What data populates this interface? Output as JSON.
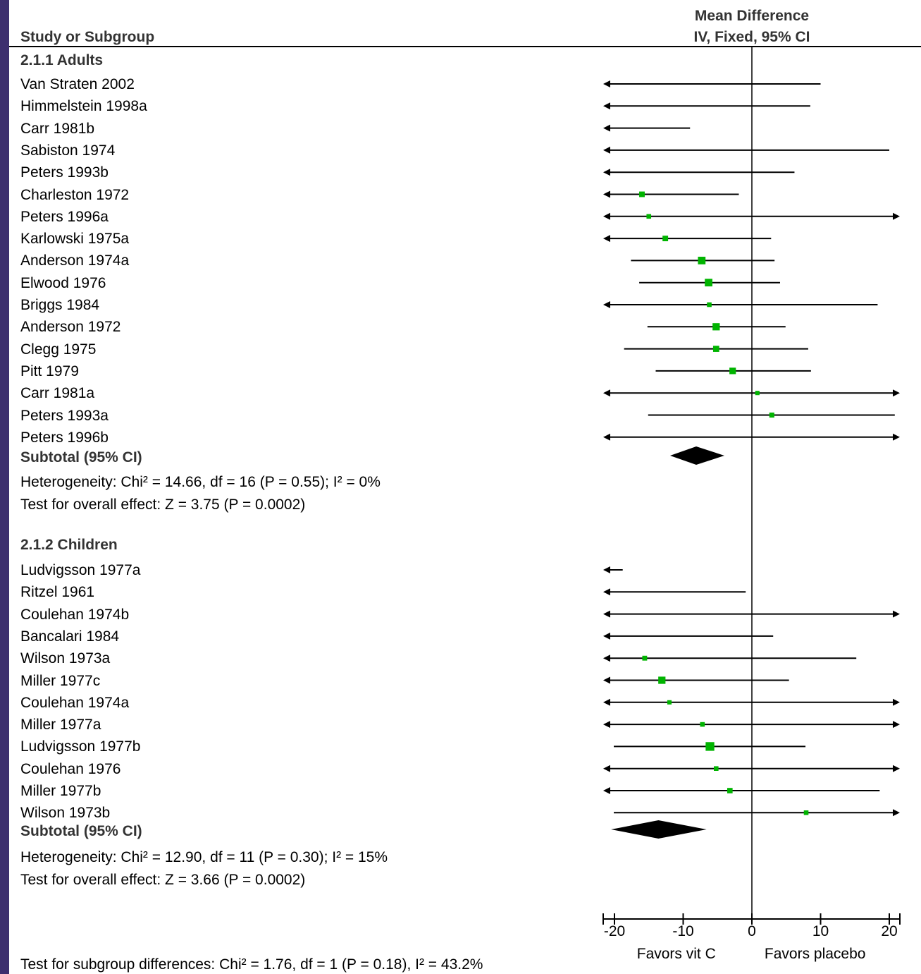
{
  "header": {
    "study_col": "Study or Subgroup",
    "md_line1": "Mean Difference",
    "md_line2": "IV, Fixed, 95% CI"
  },
  "chart_data": {
    "type": "forest",
    "xlim": [
      -21,
      21
    ],
    "xticks": [
      -20,
      -10,
      0,
      10,
      20
    ],
    "xtick_labels": [
      "-20",
      "-10",
      "0",
      "10",
      "20"
    ],
    "favors_left": "Favors vit C",
    "favors_right": "Favors placebo",
    "subgroups": [
      {
        "title": "2.1.1 Adults",
        "studies": [
          {
            "name": "Van Straten 2002",
            "md": -28,
            "lo": -60,
            "hi": 10,
            "weight": 0
          },
          {
            "name": "Himmelstein 1998a",
            "md": -30,
            "lo": -60,
            "hi": 8.5,
            "weight": 0
          },
          {
            "name": "Carr 1981b",
            "md": -40,
            "lo": -75,
            "hi": -9,
            "weight": 0
          },
          {
            "name": "Sabiston 1974",
            "md": -22,
            "lo": -60,
            "hi": 20,
            "weight": 0
          },
          {
            "name": "Peters 1993b",
            "md": -28,
            "lo": -60,
            "hi": 6.2,
            "weight": 0
          },
          {
            "name": "Charleston 1972",
            "md": -16,
            "lo": -30,
            "hi": -1.9,
            "weight": 1.5
          },
          {
            "name": "Peters 1996a",
            "md": -15,
            "lo": -45,
            "hi": 25,
            "weight": 1
          },
          {
            "name": "Karlowski 1975a",
            "md": -12.6,
            "lo": -30,
            "hi": 2.8,
            "weight": 1.5
          },
          {
            "name": "Anderson 1974a",
            "md": -7.3,
            "lo": -17.6,
            "hi": 3.3,
            "weight": 2.6
          },
          {
            "name": "Elwood 1976",
            "md": -6.3,
            "lo": -16.4,
            "hi": 4.1,
            "weight": 2.6
          },
          {
            "name": "Briggs 1984",
            "md": -6.2,
            "lo": -30,
            "hi": 18.3,
            "weight": 1
          },
          {
            "name": "Anderson 1972",
            "md": -5.2,
            "lo": -15.2,
            "hi": 4.9,
            "weight": 2.4
          },
          {
            "name": "Clegg 1975",
            "md": -5.2,
            "lo": -18.6,
            "hi": 8.2,
            "weight": 1.8
          },
          {
            "name": "Pitt 1979",
            "md": -2.8,
            "lo": -14,
            "hi": 8.6,
            "weight": 2
          },
          {
            "name": "Carr 1981a",
            "md": 0.8,
            "lo": -30,
            "hi": 30,
            "weight": 0.8
          },
          {
            "name": "Peters 1993a",
            "md": 2.9,
            "lo": -15.1,
            "hi": 20.8,
            "weight": 1.2
          },
          {
            "name": "Peters 1996b",
            "md": 0,
            "lo": -30,
            "hi": 30,
            "weight": 0
          }
        ],
        "subtotal_label": "Subtotal (95% CI)",
        "subtotal": {
          "md": -8.1,
          "lo": -11.9,
          "hi": -4.0
        },
        "heterogeneity": "Heterogeneity: Chi² = 14.66, df = 16 (P = 0.55); I² = 0%",
        "overall": "Test for overall effect: Z = 3.75 (P = 0.0002)"
      },
      {
        "title": "2.1.2 Children",
        "studies": [
          {
            "name": "Ludvigsson 1977a",
            "md": -40,
            "lo": -60,
            "hi": -18.8,
            "weight": 0
          },
          {
            "name": "Ritzel 1961",
            "md": -20,
            "lo": -45,
            "hi": -0.9,
            "weight": 0
          },
          {
            "name": "Coulehan 1974b",
            "md": 0,
            "lo": -40,
            "hi": 40,
            "weight": 0
          },
          {
            "name": "Bancalari 1984",
            "md": -25,
            "lo": -60,
            "hi": 3.1,
            "weight": 0
          },
          {
            "name": "Wilson 1973a",
            "md": -15.6,
            "lo": -45,
            "hi": 15.2,
            "weight": 1.1
          },
          {
            "name": "Miller 1977c",
            "md": -13.1,
            "lo": -40,
            "hi": 5.4,
            "weight": 2.4
          },
          {
            "name": "Coulehan 1974a",
            "md": -12,
            "lo": -40,
            "hi": 40,
            "weight": 0.8
          },
          {
            "name": "Miller 1977a",
            "md": -7.2,
            "lo": -40,
            "hi": 40,
            "weight": 1
          },
          {
            "name": "Ludvigsson 1977b",
            "md": -6.1,
            "lo": -20.1,
            "hi": 7.8,
            "weight": 3.2
          },
          {
            "name": "Coulehan 1976",
            "md": -5.2,
            "lo": -40,
            "hi": 40,
            "weight": 1
          },
          {
            "name": "Miller 1977b",
            "md": -3.2,
            "lo": -30,
            "hi": 18.6,
            "weight": 1.4
          },
          {
            "name": "Wilson 1973b",
            "md": 7.9,
            "lo": -20.1,
            "hi": 40,
            "weight": 1
          }
        ],
        "subtotal_label": "Subtotal (95% CI)",
        "subtotal": {
          "md": -13.6,
          "lo": -20.5,
          "hi": -6.6
        },
        "heterogeneity": "Heterogeneity: Chi² = 12.90, df = 11 (P = 0.30); I² = 15%",
        "overall": "Test for overall effect: Z = 3.66 (P = 0.0002)"
      }
    ],
    "subgroup_differences": "Test for subgroup differences: Chi² = 1.76, df = 1 (P = 0.18), I² = 43.2%"
  },
  "colors": {
    "square": "#00b400",
    "line": "#000000",
    "frame": "#3d2f6e"
  }
}
